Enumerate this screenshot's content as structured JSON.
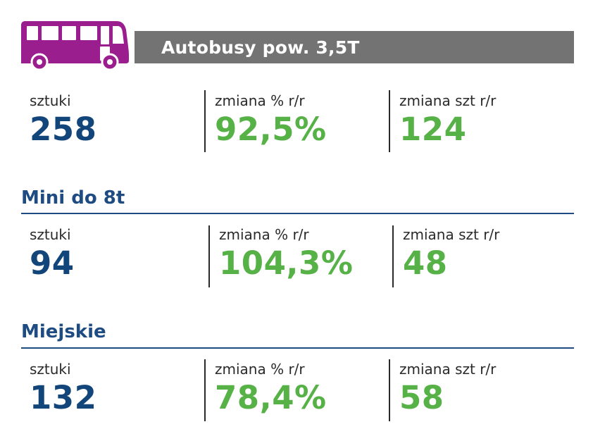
{
  "header": {
    "title": "Autobusy pow. 3,5T",
    "icon": "bus-icon",
    "icon_color": "#9b1e8e",
    "bar_color": "#737373"
  },
  "colors": {
    "blue": "#12457a",
    "green": "#56b146",
    "heading": "#1d4b82"
  },
  "sections": [
    {
      "title": "",
      "stats": [
        {
          "label": "sztuki",
          "value": "258"
        },
        {
          "label": "zmiana % r/r",
          "value": "92,5%"
        },
        {
          "label": "zmiana szt r/r",
          "value": "124"
        }
      ]
    },
    {
      "title": "Mini do 8t",
      "stats": [
        {
          "label": "sztuki",
          "value": "94"
        },
        {
          "label": "zmiana % r/r",
          "value": "104,3%"
        },
        {
          "label": "zmiana szt r/r",
          "value": "48"
        }
      ]
    },
    {
      "title": "Miejskie",
      "stats": [
        {
          "label": "sztuki",
          "value": "132"
        },
        {
          "label": "zmiana % r/r",
          "value": "78,4%"
        },
        {
          "label": "zmiana szt r/r",
          "value": "58"
        }
      ]
    }
  ]
}
